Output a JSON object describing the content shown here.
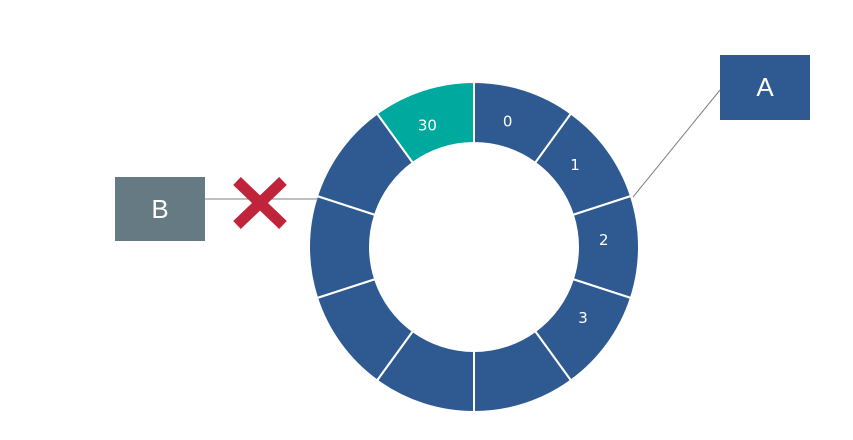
{
  "colors": {
    "segment": "#2f5a91",
    "highlight": "#00a99d",
    "node_a": "#2f5a91",
    "node_b": "#667a83",
    "cross": "#c0243b",
    "line": "#7f7f7f"
  },
  "ring": {
    "segments": [
      {
        "label": "0",
        "highlight": false
      },
      {
        "label": "1",
        "highlight": false
      },
      {
        "label": "2",
        "highlight": false
      },
      {
        "label": "3",
        "highlight": false
      },
      {
        "label": "",
        "highlight": false
      },
      {
        "label": "",
        "highlight": false
      },
      {
        "label": "",
        "highlight": false
      },
      {
        "label": "",
        "highlight": false
      },
      {
        "label": "",
        "highlight": false
      },
      {
        "label": "30",
        "highlight": true
      }
    ]
  },
  "nodes": {
    "a": {
      "label": "A"
    },
    "b": {
      "label": "B"
    }
  },
  "connections": {
    "b_blocked": true
  }
}
